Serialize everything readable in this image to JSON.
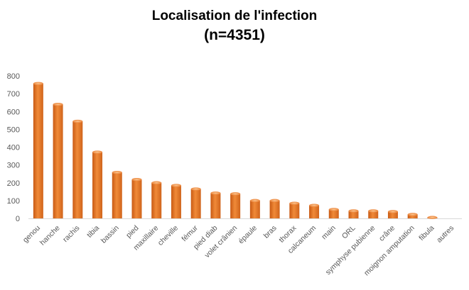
{
  "chart_data": {
    "type": "bar",
    "title_line1": "Localisation  de l'infection",
    "title_line2": "(n=4351)",
    "xlabel": "",
    "ylabel": "",
    "ylim": [
      0,
      800
    ],
    "yticks": [
      0,
      100,
      200,
      300,
      400,
      500,
      600,
      700,
      800
    ],
    "grid": false,
    "legend": "none",
    "bar_color": "#E8782A",
    "bar_highlight": "#F7B070",
    "categories": [
      "genou",
      "hanche",
      "rachis",
      "tibia",
      "bassin",
      "pied",
      "maxillaire",
      "cheville",
      "fémur",
      "pied diab",
      "volet crânien",
      "épaule",
      "bras",
      "thorax",
      "calcaneum",
      "main",
      "ORL",
      "symphyse pubienne",
      "crâne",
      "moignon amputation",
      "fibula",
      "autres"
    ],
    "values": [
      757,
      640,
      545,
      372,
      258,
      218,
      200,
      185,
      165,
      142,
      138,
      100,
      100,
      85,
      73,
      50,
      42,
      42,
      38,
      22,
      5,
      0
    ]
  }
}
